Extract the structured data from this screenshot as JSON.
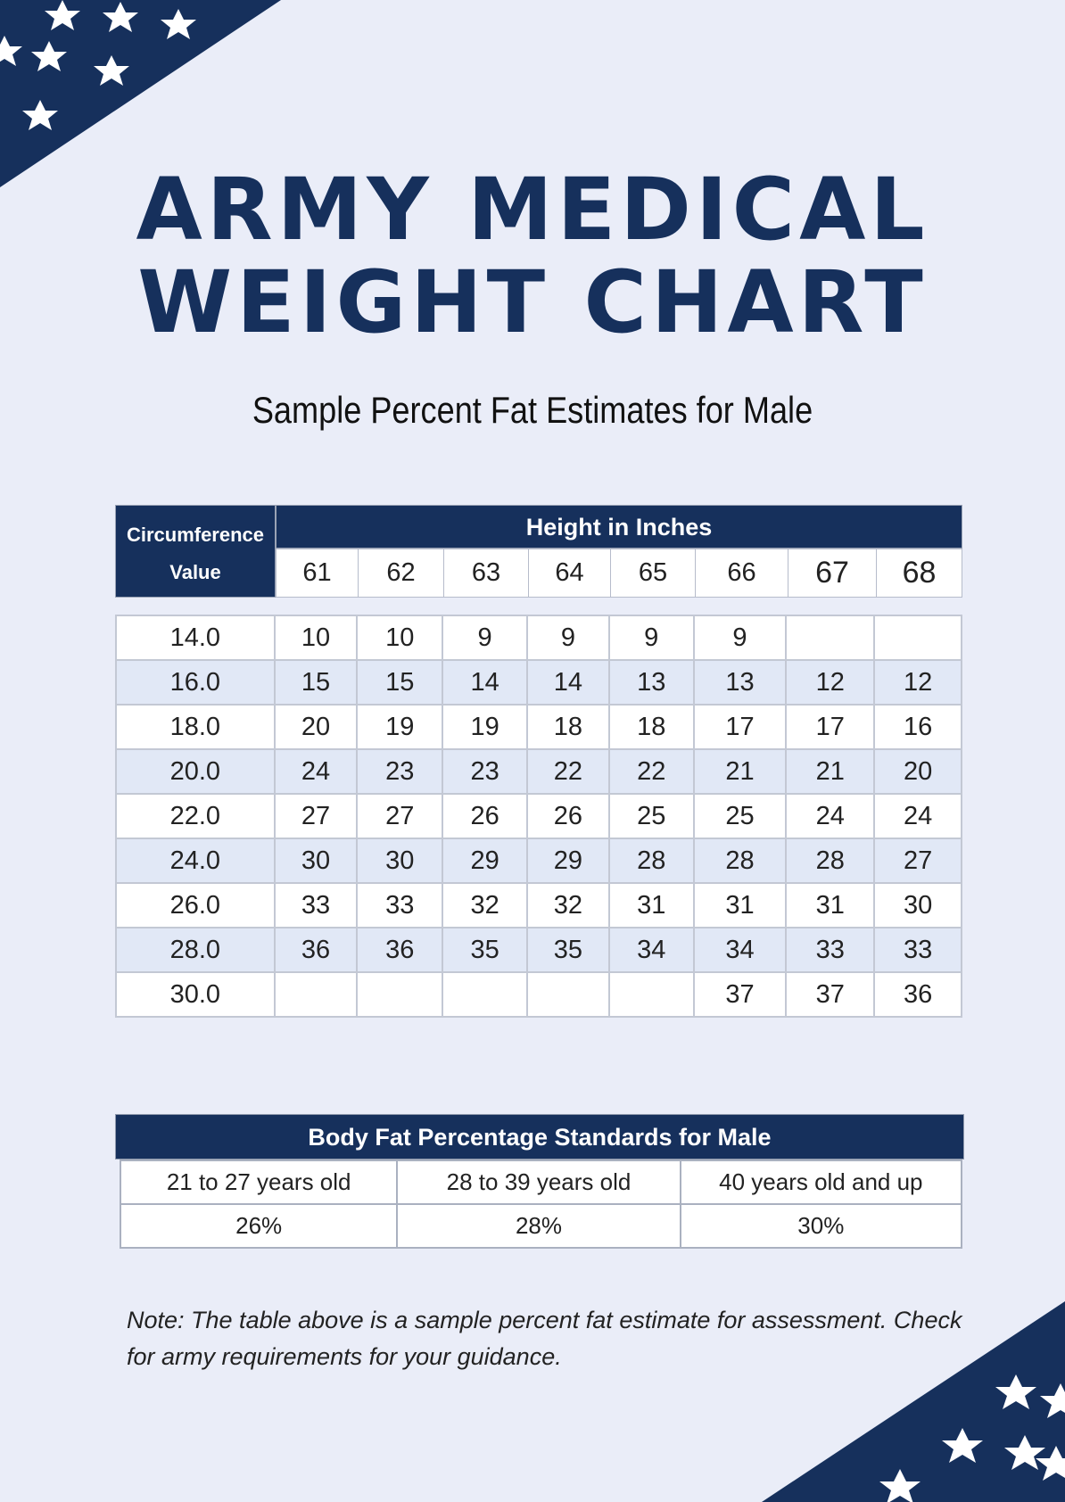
{
  "title": {
    "line1": "ARMY MEDICAL",
    "line2": "WEIGHT CHART"
  },
  "subtitle": "Sample Percent Fat Estimates for Male",
  "main_table": {
    "circumference_header_line1": "Circumference",
    "circumference_header_line2": "Value",
    "height_header": "Height in Inches",
    "heights": [
      "61",
      "62",
      "63",
      "64",
      "65",
      "66",
      "67",
      "68"
    ],
    "rows": [
      {
        "circumference": "14.0",
        "values": [
          "10",
          "10",
          "9",
          "9",
          "9",
          "9",
          "",
          ""
        ]
      },
      {
        "circumference": "16.0",
        "values": [
          "15",
          "15",
          "14",
          "14",
          "13",
          "13",
          "12",
          "12"
        ]
      },
      {
        "circumference": "18.0",
        "values": [
          "20",
          "19",
          "19",
          "18",
          "18",
          "17",
          "17",
          "16"
        ]
      },
      {
        "circumference": "20.0",
        "values": [
          "24",
          "23",
          "23",
          "22",
          "22",
          "21",
          "21",
          "20"
        ]
      },
      {
        "circumference": "22.0",
        "values": [
          "27",
          "27",
          "26",
          "26",
          "25",
          "25",
          "24",
          "24"
        ]
      },
      {
        "circumference": "24.0",
        "values": [
          "30",
          "30",
          "29",
          "29",
          "28",
          "28",
          "28",
          "27"
        ]
      },
      {
        "circumference": "26.0",
        "values": [
          "33",
          "33",
          "32",
          "32",
          "31",
          "31",
          "31",
          "30"
        ]
      },
      {
        "circumference": "28.0",
        "values": [
          "36",
          "36",
          "35",
          "35",
          "34",
          "34",
          "33",
          "33"
        ]
      },
      {
        "circumference": "30.0",
        "values": [
          "",
          "",
          "",
          "",
          "",
          "37",
          "37",
          "36"
        ]
      }
    ]
  },
  "standards": {
    "title": "Body Fat Percentage Standards for Male",
    "age_groups": [
      "21 to 27 years old",
      "28 to 39 years old",
      "40 years old and up"
    ],
    "percentages": [
      "26%",
      "28%",
      "30%"
    ]
  },
  "note": "Note: The table above is a sample percent fat estimate for assessment. Check for army requirements for your guidance.",
  "colors": {
    "navy": "#16305c",
    "background": "#eaedf8",
    "row_alt": "#e1e8f6"
  },
  "decorations": {
    "corner_icon": "star-icon"
  }
}
